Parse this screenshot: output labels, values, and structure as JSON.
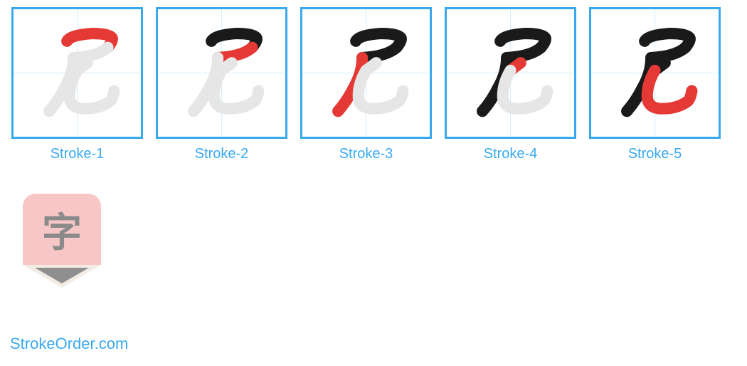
{
  "border_color": "#39a9ee",
  "label_color": "#39a9ee",
  "ghost_color": "#e6e6e6",
  "done_color": "#1a1a1a",
  "current_color": "#e53935",
  "label_fontsize": 20,
  "strokes": [
    {
      "label": "Stroke-1",
      "done_count": 0
    },
    {
      "label": "Stroke-2",
      "done_count": 1
    },
    {
      "label": "Stroke-3",
      "done_count": 2
    },
    {
      "label": "Stroke-4",
      "done_count": 3
    },
    {
      "label": "Stroke-5",
      "done_count": 4
    }
  ],
  "stroke_paths": [
    "M 42 25 Q 45 20 62 19 Q 74 19 77 22 Q 79 24 74 30",
    "M 74 30 Q 66 37 47 38",
    "M 47 38 Q 47 50 40 62 Q 35 72 28 80",
    "M 50 48 Q 54 45 58 42",
    "M 50 48 Q 44 58 44 68 Q 44 78 56 78 Q 68 78 76 72 Q 78 70 79 64"
  ],
  "logo": {
    "body_color": "#f7c6c6",
    "char": "字",
    "char_color": "#8a8a8a",
    "tip_outer": "#f2ece4",
    "tip_inner": "#8f8f8f"
  },
  "watermark": {
    "text": "StrokeOrder.com",
    "color": "#39a9ee"
  }
}
